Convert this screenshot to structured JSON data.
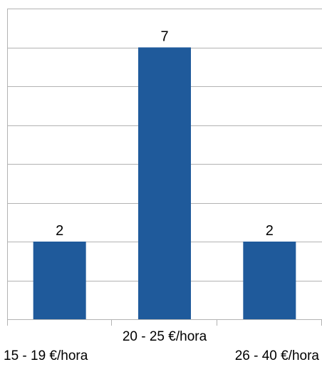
{
  "chart_data": {
    "type": "bar",
    "title": "",
    "xlabel": "",
    "ylabel": "",
    "categories": [
      "15 - 19 €/hora",
      "20 - 25 €/hora",
      "26 - 40 €/hora"
    ],
    "values": [
      2,
      7,
      2
    ],
    "ylim": [
      0,
      8
    ],
    "grid": true,
    "legend": "none",
    "bar_color": "#1F5A9B",
    "grid_color": "#B3B3B3",
    "data_labels": [
      "2",
      "7",
      "2"
    ]
  }
}
